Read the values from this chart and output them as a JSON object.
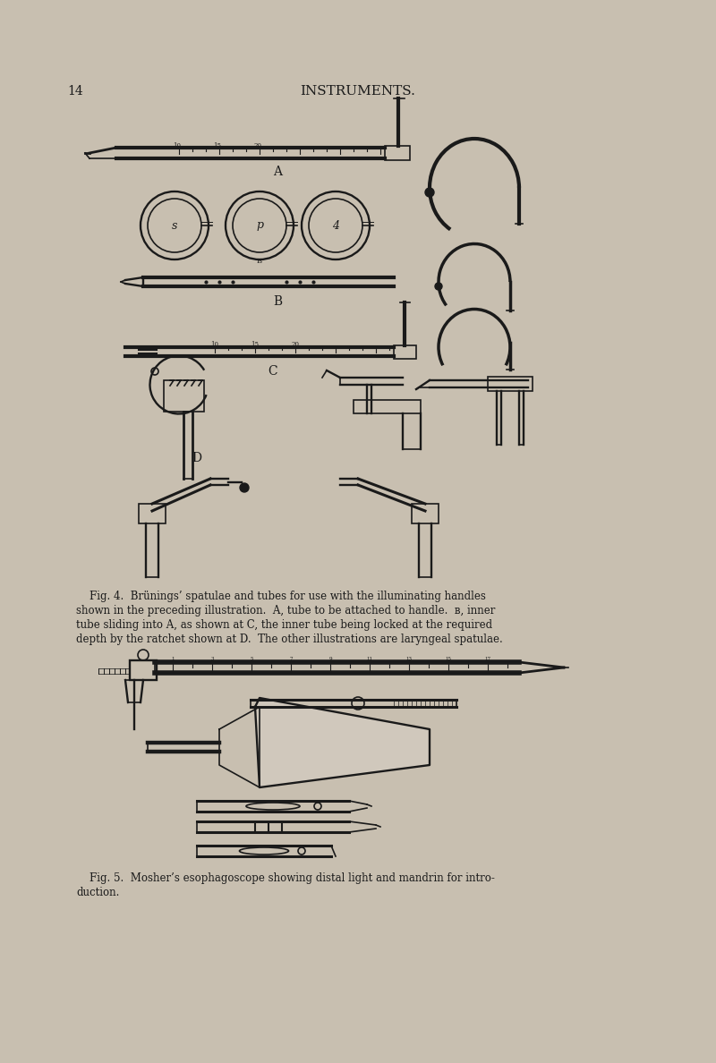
{
  "background_color": "#c8bfb0",
  "page_number": "14",
  "page_title": "INSTRUMENTS.",
  "label_A": "A",
  "label_B": "B",
  "label_C": "C",
  "label_D": "D",
  "ink_color": "#1a1a1a",
  "line_width": 1.2,
  "thick_line": 2.0,
  "font_size_caption": 8.5,
  "font_size_title": 11,
  "font_size_page": 10
}
